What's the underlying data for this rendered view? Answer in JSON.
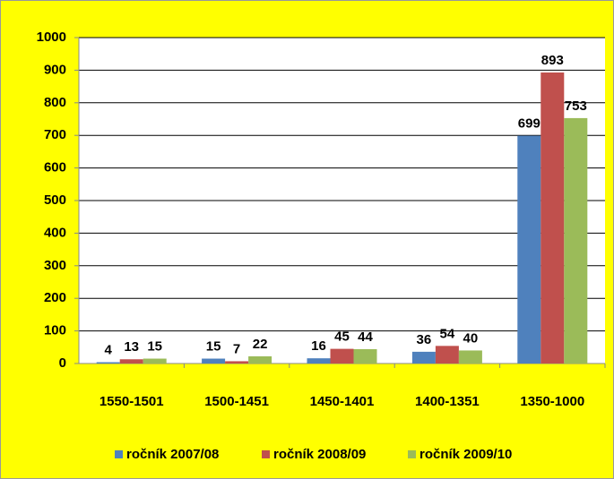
{
  "chart_data": {
    "type": "bar",
    "categories": [
      "1550-1501",
      "1500-1451",
      "1450-1401",
      "1400-1351",
      "1350-1000"
    ],
    "series": [
      {
        "name": "ročník 2007/08",
        "color": "#4f81bd",
        "values": [
          4,
          15,
          16,
          36,
          699
        ]
      },
      {
        "name": "ročník 2008/09",
        "color": "#c0504d",
        "values": [
          13,
          7,
          45,
          54,
          893
        ]
      },
      {
        "name": "ročník 2009/10",
        "color": "#9bbb59",
        "values": [
          15,
          22,
          44,
          40,
          753
        ]
      }
    ],
    "ylim": [
      0,
      1000
    ],
    "yticks": [
      0,
      100,
      200,
      300,
      400,
      500,
      600,
      700,
      800,
      900,
      1000
    ],
    "grid": true,
    "legend": "bottom"
  }
}
